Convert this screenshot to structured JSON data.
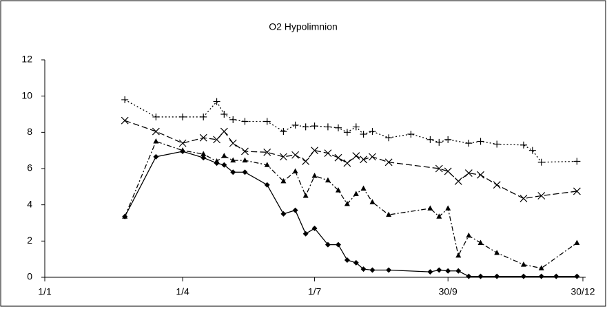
{
  "chart_data": {
    "type": "line",
    "title": "O2 Hypolimnion",
    "xlim": [
      1,
      364
    ],
    "xticks": [
      {
        "value": 1,
        "label": "1/1"
      },
      {
        "value": 94,
        "label": "1/4"
      },
      {
        "value": 183,
        "label": "1/7"
      },
      {
        "value": 273,
        "label": "30/9"
      },
      {
        "value": 364,
        "label": "30/12"
      }
    ],
    "ylim": [
      0,
      12
    ],
    "yticks": [
      0,
      2,
      4,
      6,
      8,
      10,
      12
    ],
    "series": [
      {
        "color": "#000000",
        "marker": "diamond",
        "dash": "none",
        "x": [
          55,
          76,
          94,
          108,
          117,
          122,
          128,
          136,
          151,
          162,
          170,
          177,
          183,
          192,
          199,
          205,
          211,
          216,
          222,
          233,
          261,
          267,
          273,
          280,
          287,
          295,
          306,
          324,
          336,
          346,
          360
        ],
        "values": [
          3.35,
          6.65,
          6.95,
          6.6,
          6.3,
          6.2,
          5.8,
          5.8,
          5.1,
          3.5,
          3.7,
          2.4,
          2.7,
          1.8,
          1.8,
          0.95,
          0.8,
          0.45,
          0.4,
          0.4,
          0.3,
          0.4,
          0.35,
          0.35,
          0.05,
          0.05,
          0.05,
          0.05,
          0.05,
          0.05,
          0.05
        ]
      },
      {
        "color": "#000000",
        "marker": "triangle",
        "dash": "7,3,2,3",
        "x": [
          55,
          76,
          94,
          108,
          117,
          122,
          128,
          136,
          151,
          162,
          170,
          177,
          183,
          192,
          199,
          205,
          211,
          216,
          222,
          233,
          261,
          267,
          273,
          280,
          287,
          295,
          306,
          324,
          336,
          360
        ],
        "values": [
          3.35,
          7.5,
          7.0,
          6.8,
          6.4,
          6.7,
          6.45,
          6.45,
          6.2,
          5.3,
          5.85,
          4.5,
          5.6,
          5.35,
          4.8,
          4.05,
          4.6,
          4.9,
          4.15,
          3.45,
          3.8,
          3.35,
          3.8,
          1.2,
          2.3,
          1.9,
          1.35,
          0.7,
          0.5,
          1.9
        ]
      },
      {
        "color": "#000000",
        "marker": "x",
        "dash": "9,4",
        "x": [
          55,
          76,
          94,
          108,
          117,
          122,
          128,
          136,
          151,
          162,
          170,
          177,
          183,
          192,
          199,
          205,
          211,
          216,
          222,
          233,
          267,
          273,
          280,
          287,
          295,
          306,
          324,
          336,
          360
        ],
        "values": [
          8.65,
          8.05,
          7.4,
          7.7,
          7.6,
          8.05,
          7.4,
          6.95,
          6.9,
          6.65,
          6.75,
          6.4,
          7.0,
          6.85,
          6.6,
          6.3,
          6.7,
          6.5,
          6.65,
          6.35,
          6.0,
          5.85,
          5.3,
          5.75,
          5.65,
          5.1,
          4.35,
          4.5,
          4.75
        ]
      },
      {
        "color": "#000000",
        "marker": "plus",
        "dash": "2,3",
        "x": [
          55,
          76,
          94,
          108,
          117,
          122,
          128,
          136,
          151,
          162,
          170,
          177,
          183,
          192,
          199,
          205,
          211,
          216,
          222,
          233,
          248,
          261,
          267,
          273,
          287,
          295,
          306,
          324,
          330,
          336,
          360
        ],
        "values": [
          9.8,
          8.85,
          8.85,
          8.85,
          9.7,
          9.0,
          8.7,
          8.6,
          8.6,
          8.05,
          8.4,
          8.3,
          8.35,
          8.3,
          8.25,
          8.0,
          8.3,
          7.9,
          8.05,
          7.7,
          7.9,
          7.6,
          7.45,
          7.6,
          7.4,
          7.5,
          7.35,
          7.3,
          7.0,
          6.35,
          6.4
        ]
      }
    ]
  }
}
